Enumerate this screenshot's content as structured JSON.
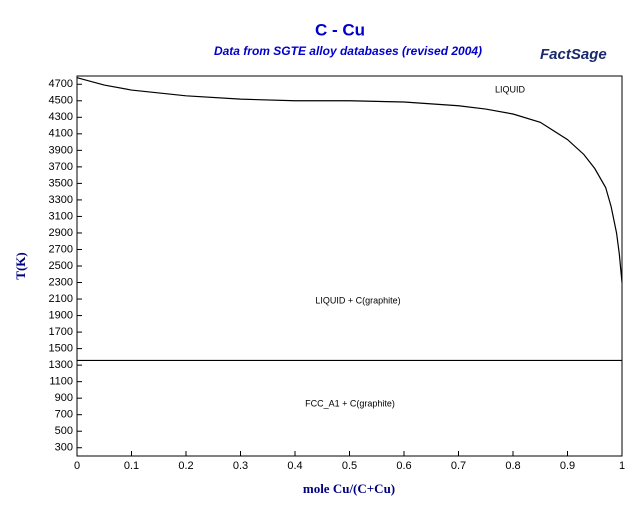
{
  "chart_data": {
    "type": "line",
    "title": "C - Cu",
    "subtitle": "Data from SGTE alloy databases (revised 2004)",
    "logo": "FactSage",
    "x_label": "mole Cu/(C+Cu)",
    "y_label": "T(K)",
    "xlim": [
      0,
      1
    ],
    "xticks": [
      0,
      0.1,
      0.2,
      0.3,
      0.4,
      0.5,
      0.6,
      0.7,
      0.8,
      0.9,
      1
    ],
    "ylim": [
      200,
      4800
    ],
    "yticks": [
      300,
      500,
      700,
      900,
      1100,
      1300,
      1500,
      1700,
      1900,
      2100,
      2300,
      2500,
      2700,
      2900,
      3100,
      3300,
      3500,
      3700,
      3900,
      4100,
      4300,
      4500,
      4700
    ],
    "grid": false,
    "series": [
      {
        "color": "#000000",
        "x": [
          0,
          0.05,
          0.1,
          0.2,
          0.3,
          0.4,
          0.5,
          0.6,
          0.7,
          0.75,
          0.8,
          0.85,
          0.9,
          0.93,
          0.95,
          0.97,
          0.98,
          0.99,
          0.995,
          1
        ],
        "values": [
          4780,
          4690,
          4630,
          4560,
          4520,
          4500,
          4500,
          4485,
          4440,
          4400,
          4340,
          4240,
          4030,
          3850,
          3680,
          3450,
          3220,
          2900,
          2650,
          2300
        ]
      },
      {
        "color": "#000000",
        "x": [
          0,
          1
        ],
        "values": [
          1357,
          1357
        ]
      }
    ],
    "annotations": [
      "LIQUID",
      "LIQUID + C(graphite)",
      "FCC_A1 + C(graphite)"
    ]
  }
}
